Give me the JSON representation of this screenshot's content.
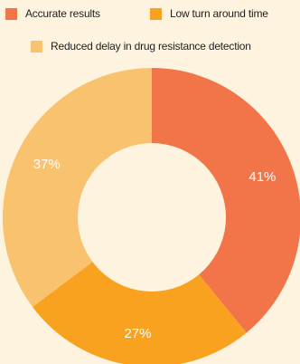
{
  "chart_data": {
    "type": "pie",
    "donut": true,
    "legend_position": "top",
    "series": [
      {
        "name": "Accurate results",
        "value": 41,
        "label": "41%",
        "color": "#f2754a"
      },
      {
        "name": "Low turn around time",
        "value": 27,
        "label": "27%",
        "color": "#f9a21f"
      },
      {
        "name": "Reduced delay in drug resistance detection",
        "value": 37,
        "label": "37%",
        "color": "#f8c26f"
      }
    ]
  },
  "colors": {
    "background": "#fef3de",
    "hole": "#fef3de",
    "label_text": "#ffffff"
  }
}
